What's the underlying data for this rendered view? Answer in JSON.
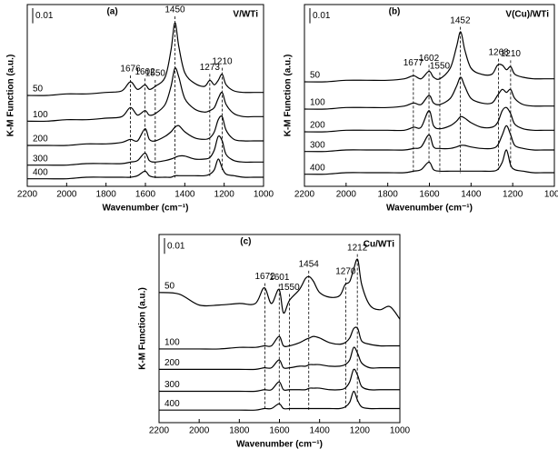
{
  "chart_data": [
    {
      "type": "line",
      "title": "(a)",
      "annotation": "V/WTi",
      "xlabel": "Wavenumber (cm⁻¹)",
      "ylabel": "K-M Function (a.u.)",
      "xlim": [
        2200,
        1000
      ],
      "xticks": [
        2200,
        2000,
        1800,
        1600,
        1400,
        1200,
        1000
      ],
      "ylim": [
        0,
        0.12
      ],
      "scale_bar": 0.01,
      "peaks": [
        1676,
        1602,
        1550,
        1450,
        1273,
        1210
      ],
      "x": [
        2200,
        2100,
        2000,
        1900,
        1800,
        1720,
        1676,
        1640,
        1602,
        1580,
        1550,
        1500,
        1470,
        1450,
        1430,
        1400,
        1350,
        1300,
        1273,
        1250,
        1230,
        1210,
        1190,
        1150,
        1100,
        1050,
        1000
      ],
      "series": [
        {
          "name": "50",
          "color": "#000000",
          "values": [
            0.06,
            0.06,
            0.061,
            0.061,
            0.062,
            0.063,
            0.069,
            0.064,
            0.067,
            0.064,
            0.066,
            0.072,
            0.09,
            0.108,
            0.092,
            0.075,
            0.068,
            0.066,
            0.07,
            0.067,
            0.07,
            0.074,
            0.067,
            0.063,
            0.062,
            0.062,
            0.062
          ]
        },
        {
          "name": "100",
          "color": "#000000",
          "values": [
            0.043,
            0.043,
            0.044,
            0.044,
            0.045,
            0.046,
            0.052,
            0.047,
            0.05,
            0.047,
            0.048,
            0.054,
            0.066,
            0.078,
            0.072,
            0.058,
            0.051,
            0.049,
            0.05,
            0.052,
            0.058,
            0.062,
            0.054,
            0.048,
            0.046,
            0.046,
            0.046
          ]
        },
        {
          "name": "200",
          "color": "#000000",
          "values": [
            0.027,
            0.027,
            0.027,
            0.028,
            0.028,
            0.029,
            0.031,
            0.03,
            0.038,
            0.031,
            0.03,
            0.033,
            0.036,
            0.039,
            0.04,
            0.036,
            0.032,
            0.031,
            0.032,
            0.036,
            0.044,
            0.046,
            0.037,
            0.031,
            0.03,
            0.03,
            0.03
          ]
        },
        {
          "name": "300",
          "color": "#000000",
          "values": [
            0.014,
            0.014,
            0.014,
            0.015,
            0.015,
            0.015,
            0.016,
            0.017,
            0.022,
            0.017,
            0.016,
            0.017,
            0.018,
            0.019,
            0.02,
            0.02,
            0.018,
            0.018,
            0.019,
            0.024,
            0.033,
            0.03,
            0.021,
            0.017,
            0.016,
            0.016,
            0.016
          ]
        },
        {
          "name": "400",
          "color": "#000000",
          "values": [
            0.005,
            0.005,
            0.005,
            0.006,
            0.006,
            0.006,
            0.006,
            0.007,
            0.01,
            0.007,
            0.006,
            0.006,
            0.006,
            0.007,
            0.007,
            0.007,
            0.007,
            0.007,
            0.008,
            0.011,
            0.018,
            0.012,
            0.008,
            0.007,
            0.006,
            0.006,
            0.006
          ]
        }
      ]
    },
    {
      "type": "line",
      "title": "(b)",
      "annotation": "V(Cu)/WTi",
      "xlabel": "Wavenumber (cm⁻¹)",
      "ylabel": "K-M Function (a.u.)",
      "xlim": [
        2200,
        1000
      ],
      "xticks": [
        2200,
        2000,
        1800,
        1600,
        1400,
        1200,
        1000
      ],
      "ylim": [
        0,
        0.12
      ],
      "scale_bar": 0.01,
      "peaks": [
        1677,
        1602,
        1550,
        1452,
        1268,
        1210
      ],
      "x": [
        2200,
        2100,
        2000,
        1900,
        1800,
        1720,
        1676,
        1640,
        1602,
        1580,
        1550,
        1500,
        1470,
        1450,
        1430,
        1400,
        1350,
        1300,
        1273,
        1250,
        1230,
        1210,
        1190,
        1150,
        1100,
        1050,
        1000
      ],
      "series": [
        {
          "name": "50",
          "color": "#000000",
          "values": [
            0.069,
            0.069,
            0.07,
            0.07,
            0.07,
            0.071,
            0.073,
            0.071,
            0.076,
            0.072,
            0.071,
            0.078,
            0.092,
            0.102,
            0.09,
            0.078,
            0.074,
            0.074,
            0.08,
            0.08,
            0.077,
            0.079,
            0.074,
            0.072,
            0.071,
            0.071,
            0.071
          ]
        },
        {
          "name": "100",
          "color": "#000000",
          "values": [
            0.051,
            0.051,
            0.052,
            0.052,
            0.052,
            0.053,
            0.055,
            0.054,
            0.06,
            0.055,
            0.054,
            0.058,
            0.066,
            0.072,
            0.066,
            0.058,
            0.055,
            0.055,
            0.06,
            0.064,
            0.062,
            0.064,
            0.058,
            0.054,
            0.053,
            0.053,
            0.053
          ]
        },
        {
          "name": "200",
          "color": "#000000",
          "values": [
            0.036,
            0.036,
            0.037,
            0.037,
            0.037,
            0.037,
            0.039,
            0.039,
            0.05,
            0.04,
            0.038,
            0.04,
            0.043,
            0.046,
            0.045,
            0.042,
            0.039,
            0.039,
            0.042,
            0.05,
            0.052,
            0.048,
            0.041,
            0.038,
            0.037,
            0.037,
            0.037
          ]
        },
        {
          "name": "300",
          "color": "#000000",
          "values": [
            0.023,
            0.023,
            0.024,
            0.024,
            0.024,
            0.024,
            0.025,
            0.026,
            0.034,
            0.026,
            0.025,
            0.025,
            0.026,
            0.027,
            0.027,
            0.026,
            0.025,
            0.025,
            0.027,
            0.034,
            0.04,
            0.034,
            0.027,
            0.025,
            0.024,
            0.024,
            0.024
          ]
        },
        {
          "name": "400",
          "color": "#000000",
          "values": [
            0.008,
            0.008,
            0.009,
            0.009,
            0.009,
            0.009,
            0.01,
            0.011,
            0.016,
            0.011,
            0.01,
            0.01,
            0.01,
            0.01,
            0.01,
            0.01,
            0.01,
            0.01,
            0.011,
            0.016,
            0.024,
            0.014,
            0.011,
            0.01,
            0.009,
            0.009,
            0.009
          ]
        }
      ]
    },
    {
      "type": "line",
      "title": "(c)",
      "annotation": "Cu/WTi",
      "xlabel": "Wavenumber (cm⁻¹)",
      "ylabel": "K-M Function (a.u.)",
      "xlim": [
        2200,
        1000
      ],
      "xticks": [
        2200,
        2000,
        1800,
        1600,
        1400,
        1200,
        1000
      ],
      "ylim": [
        0,
        0.12
      ],
      "scale_bar": 0.01,
      "peaks": [
        1672,
        1601,
        1550,
        1454,
        1270,
        1212
      ],
      "x": [
        2200,
        2100,
        2000,
        1900,
        1800,
        1720,
        1676,
        1640,
        1602,
        1580,
        1550,
        1500,
        1470,
        1450,
        1430,
        1400,
        1350,
        1300,
        1273,
        1250,
        1230,
        1210,
        1190,
        1150,
        1100,
        1050,
        1000
      ],
      "series": [
        {
          "name": "50",
          "color": "#000000",
          "values": [
            0.083,
            0.082,
            0.075,
            0.075,
            0.076,
            0.076,
            0.086,
            0.076,
            0.085,
            0.07,
            0.078,
            0.085,
            0.092,
            0.093,
            0.09,
            0.083,
            0.08,
            0.081,
            0.088,
            0.09,
            0.098,
            0.104,
            0.088,
            0.075,
            0.072,
            0.074,
            0.066
          ]
        },
        {
          "name": "100",
          "color": "#000000",
          "values": [
            0.047,
            0.047,
            0.047,
            0.047,
            0.048,
            0.048,
            0.049,
            0.049,
            0.055,
            0.049,
            0.049,
            0.051,
            0.053,
            0.054,
            0.055,
            0.054,
            0.051,
            0.05,
            0.051,
            0.054,
            0.06,
            0.06,
            0.052,
            0.05,
            0.049,
            0.049,
            0.049
          ]
        },
        {
          "name": "200",
          "color": "#000000",
          "values": [
            0.034,
            0.034,
            0.034,
            0.034,
            0.034,
            0.034,
            0.035,
            0.035,
            0.04,
            0.035,
            0.035,
            0.036,
            0.036,
            0.037,
            0.037,
            0.037,
            0.036,
            0.036,
            0.037,
            0.04,
            0.048,
            0.044,
            0.038,
            0.035,
            0.035,
            0.035,
            0.035
          ]
        },
        {
          "name": "300",
          "color": "#000000",
          "values": [
            0.02,
            0.02,
            0.02,
            0.02,
            0.02,
            0.02,
            0.021,
            0.021,
            0.026,
            0.021,
            0.021,
            0.021,
            0.021,
            0.022,
            0.022,
            0.022,
            0.021,
            0.021,
            0.022,
            0.026,
            0.034,
            0.03,
            0.023,
            0.021,
            0.021,
            0.021,
            0.021
          ]
        },
        {
          "name": "400",
          "color": "#000000",
          "values": [
            0.008,
            0.008,
            0.008,
            0.008,
            0.008,
            0.008,
            0.009,
            0.009,
            0.012,
            0.009,
            0.009,
            0.009,
            0.009,
            0.009,
            0.009,
            0.009,
            0.009,
            0.009,
            0.01,
            0.013,
            0.02,
            0.014,
            0.01,
            0.009,
            0.009,
            0.009,
            0.009
          ]
        }
      ]
    }
  ]
}
